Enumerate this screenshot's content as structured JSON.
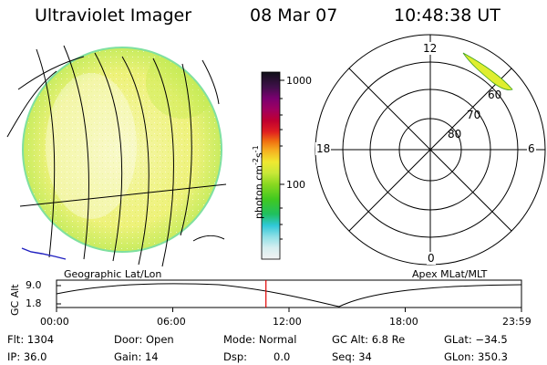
{
  "header": {
    "title": "Ultraviolet Imager",
    "date": "08 Mar 07",
    "time": "10:48:38 UT"
  },
  "earth_image": {
    "caption": "Geographic Lat/Lon",
    "emission_color": "#eef27a",
    "grid_color": "#000000",
    "coastline_color": "#2020c0"
  },
  "colorbar": {
    "unit_label": "photon cm",
    "exp1": "-2",
    "mid": "s",
    "exp2": "-1",
    "tick_1000": "1000",
    "tick_100": "100",
    "range": [
      0,
      1200
    ]
  },
  "polar_plot": {
    "caption": "Apex MLat/MLT",
    "mlt_labels": {
      "top": "12",
      "left": "18",
      "right": "6",
      "bottom": "0"
    },
    "lat_labels": [
      "80",
      "70",
      "60"
    ],
    "auroral_color": "#dfee30"
  },
  "altitude_strip": {
    "axis_label": "GC Alt",
    "y_max": "9.0",
    "y_min": "1.8",
    "x_ticks": [
      "00:00",
      "06:00",
      "12:00",
      "18:00",
      "23:59"
    ],
    "current_time_marker": 10.81,
    "marker_color": "#e00000"
  },
  "info": {
    "row1": {
      "flt": "Flt: 1304",
      "door": "Door: Open",
      "mode": "Mode: Normal",
      "gcalt": "GC Alt: 6.8 Re",
      "glat": "GLat: −34.5"
    },
    "row2": {
      "ip": "IP: 36.0",
      "gain": "Gain: 14",
      "dsp_label": "Dsp:",
      "dsp_value": "0.0",
      "seq": "Seq: 34",
      "glon": "GLon: 350.3"
    }
  }
}
